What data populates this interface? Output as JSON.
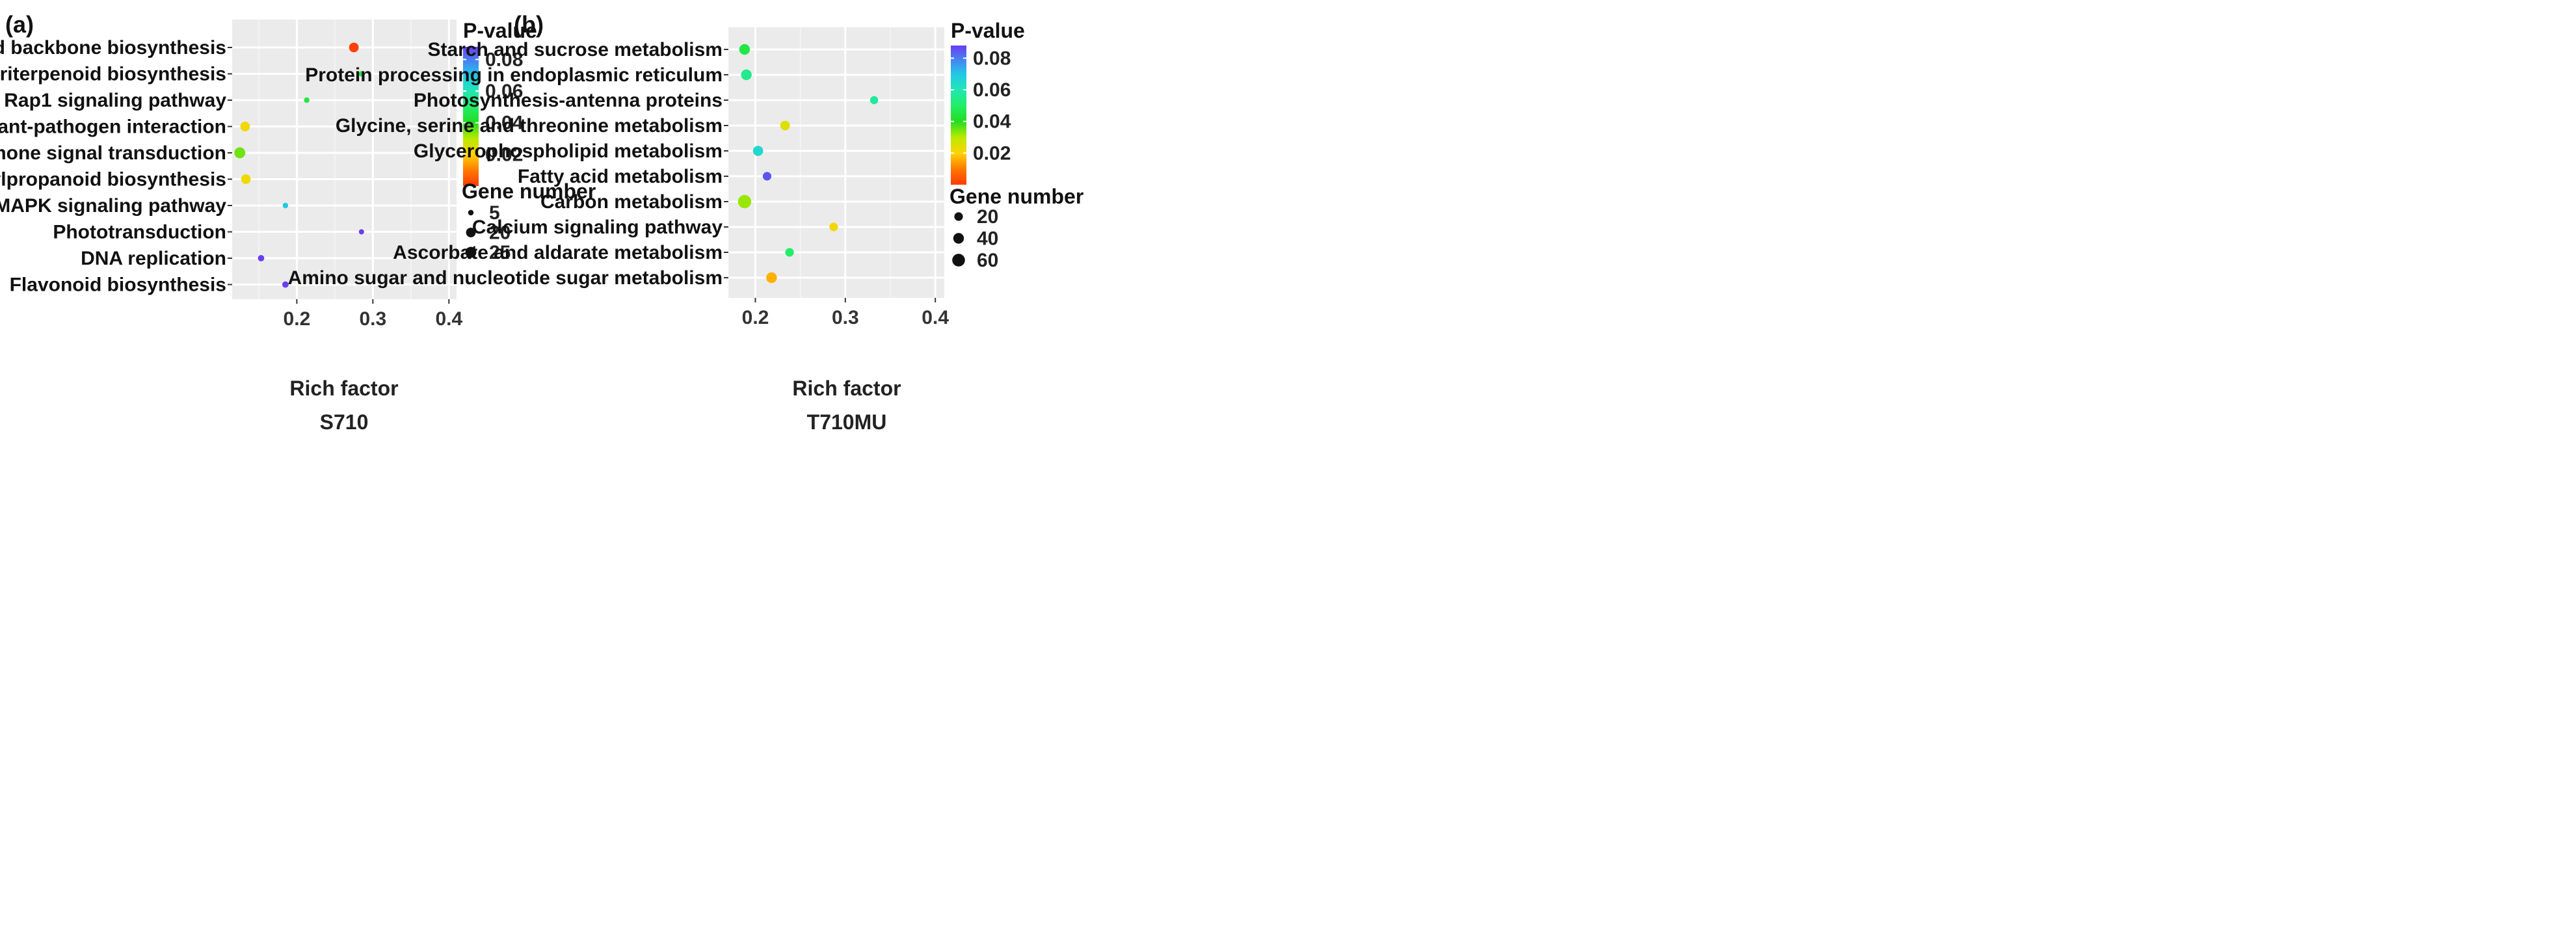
{
  "chart_data": [
    {
      "panel_label": "(a)",
      "type": "scatter",
      "xlabel": "Rich factor",
      "sample": "S710",
      "xlim": [
        0.115,
        0.41
      ],
      "x_ticks": [
        "0.2",
        "0.3",
        "0.4"
      ],
      "x_tick_values": [
        0.2,
        0.3,
        0.4
      ],
      "categories": [
        "Terpenoid backbone biosynthesis",
        "Sesquiterpenoid and triterpenoid biosynthesis",
        "Rap1 signaling pathway",
        "Plant-pathogen interaction",
        "Plant hormone signal transduction",
        "Phenylpropanoid biosynthesis",
        "MAPK signaling pathway",
        "Phototransduction",
        "DNA replication",
        "Flavonoid biosynthesis"
      ],
      "points": [
        {
          "category": "Terpenoid backbone biosynthesis",
          "rich_factor": 0.275,
          "p_value": 0.001,
          "gene_number": 20
        },
        {
          "category": "Sesquiterpenoid and triterpenoid biosynthesis",
          "rich_factor": 0.285,
          "p_value": 0.045,
          "gene_number": 5
        },
        {
          "category": "Rap1 signaling pathway",
          "rich_factor": 0.213,
          "p_value": 0.045,
          "gene_number": 5
        },
        {
          "category": "Plant-pathogen interaction",
          "rich_factor": 0.132,
          "p_value": 0.022,
          "gene_number": 20
        },
        {
          "category": "Plant hormone signal transduction",
          "rich_factor": 0.125,
          "p_value": 0.035,
          "gene_number": 25
        },
        {
          "category": "Phenylpropanoid biosynthesis",
          "rich_factor": 0.133,
          "p_value": 0.022,
          "gene_number": 20
        },
        {
          "category": "MAPK signaling pathway",
          "rich_factor": 0.185,
          "p_value": 0.07,
          "gene_number": 5
        },
        {
          "category": "Phototransduction",
          "rich_factor": 0.285,
          "p_value": 0.088,
          "gene_number": 4
        },
        {
          "category": "DNA replication",
          "rich_factor": 0.153,
          "p_value": 0.088,
          "gene_number": 8
        },
        {
          "category": "Flavonoid biosynthesis",
          "rich_factor": 0.185,
          "p_value": 0.088,
          "gene_number": 8
        }
      ],
      "legend": {
        "color_title": "P-value",
        "color_ticks": [
          "0.08",
          "0.06",
          "0.04",
          "0.02"
        ],
        "color_tick_values": [
          0.08,
          0.06,
          0.04,
          0.02
        ],
        "color_range": [
          0.0,
          0.088
        ],
        "size_title": "Gene number",
        "size_items": [
          {
            "label": "5",
            "value": 5
          },
          {
            "label": "20",
            "value": 20
          },
          {
            "label": "25",
            "value": 25
          }
        ]
      }
    },
    {
      "panel_label": "(b)",
      "type": "scatter",
      "xlabel": "Rich factor",
      "sample": "T710MU",
      "xlim": [
        0.17,
        0.41
      ],
      "x_ticks": [
        "0.2",
        "0.3",
        "0.4"
      ],
      "x_tick_values": [
        0.2,
        0.3,
        0.4
      ],
      "categories": [
        "Starch and sucrose metabolism",
        "Protein processing in endoplasmic reticulum",
        "Photosynthesis-antenna proteins",
        "Glycine, serine and threonine metabolism",
        "Glycerophospholipid metabolism",
        "Fatty acid metabolism",
        "Carbon metabolism",
        "Calcium signaling pathway",
        "Ascorbate and aldarate metabolism",
        "Amino sugar and nucleotide sugar metabolism"
      ],
      "points": [
        {
          "category": "Starch and sucrose metabolism",
          "rich_factor": 0.188,
          "p_value": 0.045,
          "gene_number": 40
        },
        {
          "category": "Protein processing in endoplasmic reticulum",
          "rich_factor": 0.19,
          "p_value": 0.055,
          "gene_number": 40
        },
        {
          "category": "Photosynthesis-antenna proteins",
          "rich_factor": 0.332,
          "p_value": 0.057,
          "gene_number": 15
        },
        {
          "category": "Glycine, serine and threonine metabolism",
          "rich_factor": 0.233,
          "p_value": 0.025,
          "gene_number": 30
        },
        {
          "category": "Glycerophospholipid metabolism",
          "rich_factor": 0.203,
          "p_value": 0.065,
          "gene_number": 35
        },
        {
          "category": "Fatty acid metabolism",
          "rich_factor": 0.213,
          "p_value": 0.085,
          "gene_number": 20
        },
        {
          "category": "Carbon metabolism",
          "rich_factor": 0.188,
          "p_value": 0.032,
          "gene_number": 65
        },
        {
          "category": "Calcium signaling pathway",
          "rich_factor": 0.287,
          "p_value": 0.022,
          "gene_number": 20
        },
        {
          "category": "Ascorbate and aldarate metabolism",
          "rich_factor": 0.238,
          "p_value": 0.05,
          "gene_number": 20
        },
        {
          "category": "Amino sugar and nucleotide sugar metabolism",
          "rich_factor": 0.218,
          "p_value": 0.016,
          "gene_number": 40
        }
      ],
      "legend": {
        "color_title": "P-value",
        "color_ticks": [
          "0.08",
          "0.06",
          "0.04",
          "0.02"
        ],
        "color_tick_values": [
          0.08,
          0.06,
          0.04,
          0.02
        ],
        "color_range": [
          0.0,
          0.088
        ],
        "size_title": "Gene number",
        "size_items": [
          {
            "label": "20",
            "value": 20
          },
          {
            "label": "40",
            "value": 40
          },
          {
            "label": "60",
            "value": 60
          }
        ]
      }
    }
  ]
}
